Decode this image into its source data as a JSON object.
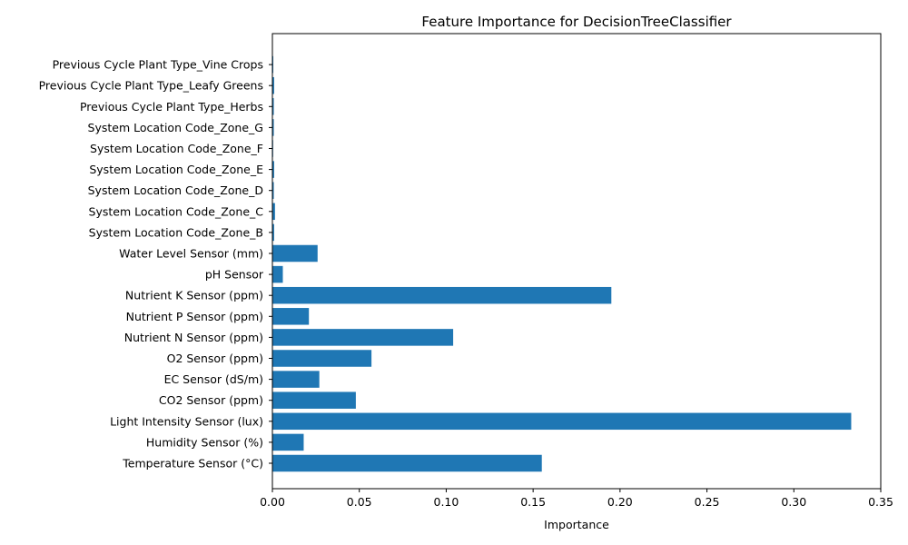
{
  "chart_data": {
    "type": "bar",
    "orientation": "horizontal",
    "title": "Feature Importance for DecisionTreeClassifier",
    "xlabel": "Importance",
    "ylabel": "",
    "xlim": [
      0,
      0.35
    ],
    "xticks": [
      "0.00",
      "0.05",
      "0.10",
      "0.15",
      "0.20",
      "0.25",
      "0.30",
      "0.35"
    ],
    "grid": false,
    "bar_color": "#1f77b4",
    "categories": [
      "Temperature Sensor (°C)",
      "Humidity Sensor (%)",
      "Light Intensity Sensor (lux)",
      "CO2 Sensor (ppm)",
      "EC Sensor (dS/m)",
      "O2 Sensor (ppm)",
      "Nutrient N Sensor (ppm)",
      "Nutrient P Sensor (ppm)",
      "Nutrient K Sensor (ppm)",
      "pH Sensor",
      "Water Level Sensor (mm)",
      "System Location Code_Zone_B",
      "System Location Code_Zone_C",
      "System Location Code_Zone_D",
      "System Location Code_Zone_E",
      "System Location Code_Zone_F",
      "System Location Code_Zone_G",
      "Previous Cycle Plant Type_Herbs",
      "Previous Cycle Plant Type_Leafy Greens",
      "Previous Cycle Plant Type_Vine Crops"
    ],
    "values": [
      0.155,
      0.018,
      0.333,
      0.048,
      0.027,
      0.057,
      0.104,
      0.021,
      0.195,
      0.006,
      0.026,
      0.001,
      0.0015,
      0.0008,
      0.001,
      0.0003,
      0.0008,
      0.0008,
      0.001,
      0.0005
    ]
  }
}
